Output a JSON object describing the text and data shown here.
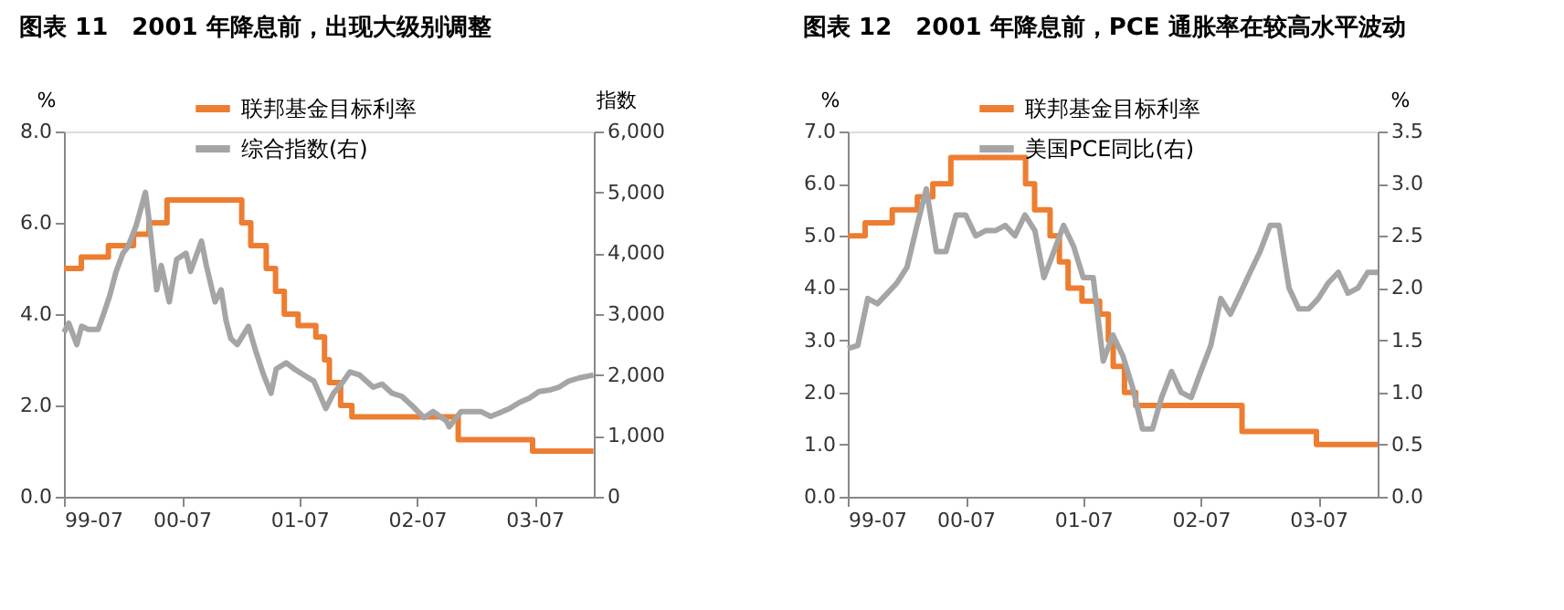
{
  "chart_data": [
    {
      "type": "line",
      "title": "图表 11　2001 年降息前，出现大级别调整",
      "ylabel": "%",
      "y2label": "指数",
      "legend": "top",
      "grid": false,
      "xlim": [
        "1999-07-01",
        "2004-01-01"
      ],
      "xticks": [
        {
          "value": "1999-07",
          "label": "99-07"
        },
        {
          "value": "2000-07",
          "label": "00-07"
        },
        {
          "value": "2001-07",
          "label": "01-07"
        },
        {
          "value": "2002-07",
          "label": "02-07"
        },
        {
          "value": "2003-07",
          "label": "03-07"
        }
      ],
      "ylim": [
        0,
        8
      ],
      "yticks": [
        {
          "value": 0,
          "label": "0.0"
        },
        {
          "value": 2,
          "label": "2.0"
        },
        {
          "value": 4,
          "label": "4.0"
        },
        {
          "value": 6,
          "label": "6.0"
        },
        {
          "value": 8,
          "label": "8.0"
        }
      ],
      "y2lim": [
        0,
        6000
      ],
      "y2ticks": [
        {
          "value": 0,
          "label": "0"
        },
        {
          "value": 1000,
          "label": "1,000"
        },
        {
          "value": 2000,
          "label": "2,000"
        },
        {
          "value": 3000,
          "label": "3,000"
        },
        {
          "value": 4000,
          "label": "4,000"
        },
        {
          "value": 5000,
          "label": "5,000"
        },
        {
          "value": 6000,
          "label": "6,000"
        }
      ],
      "series": [
        {
          "name": "联邦基金目标利率",
          "type": "step",
          "color": "#ed7d31",
          "x": [
            "1999-07-01",
            "1999-08-24",
            "1999-11-16",
            "2000-02-02",
            "2000-03-21",
            "2000-05-16",
            "2001-01-03",
            "2001-01-31",
            "2001-03-20",
            "2001-04-18",
            "2001-05-15",
            "2001-06-27",
            "2001-08-21",
            "2001-09-17",
            "2001-10-02",
            "2001-11-06",
            "2001-12-11",
            "2002-11-06",
            "2003-06-25",
            "2003-12-31"
          ],
          "values": [
            5.0,
            5.25,
            5.5,
            5.75,
            6.0,
            6.5,
            6.0,
            5.5,
            5.0,
            4.5,
            4.0,
            3.75,
            3.5,
            3.0,
            2.5,
            2.0,
            1.75,
            1.25,
            1.0,
            1.0
          ]
        },
        {
          "name": "综合指数(右)",
          "axis": "y2",
          "color": "#a5a5a5",
          "x": [
            "1999-07-01",
            "1999-07-16",
            "1999-08-10",
            "1999-08-25",
            "1999-09-15",
            "1999-10-15",
            "1999-11-01",
            "1999-11-20",
            "1999-12-10",
            "1999-12-31",
            "2000-01-15",
            "2000-02-10",
            "2000-03-10",
            "2000-03-20",
            "2000-04-14",
            "2000-04-28",
            "2000-05-23",
            "2000-06-15",
            "2000-07-14",
            "2000-07-28",
            "2000-08-31",
            "2000-09-15",
            "2000-10-12",
            "2000-10-31",
            "2000-11-15",
            "2000-11-30",
            "2000-12-20",
            "2001-01-24",
            "2001-02-15",
            "2001-03-12",
            "2001-04-04",
            "2001-04-20",
            "2001-05-21",
            "2001-06-15",
            "2001-07-15",
            "2001-08-15",
            "2001-09-21",
            "2001-10-15",
            "2001-11-15",
            "2001-12-05",
            "2002-01-04",
            "2002-02-15",
            "2002-03-15",
            "2002-04-15",
            "2002-05-15",
            "2002-06-15",
            "2002-07-23",
            "2002-08-20",
            "2002-09-30",
            "2002-10-09",
            "2002-11-15",
            "2002-12-15",
            "2003-01-15",
            "2003-02-15",
            "2003-03-15",
            "2003-04-15",
            "2003-05-15",
            "2003-06-15",
            "2003-07-15",
            "2003-08-15",
            "2003-09-15",
            "2003-10-15",
            "2003-11-15",
            "2003-12-31"
          ],
          "values": [
            2700,
            2850,
            2500,
            2800,
            2750,
            2750,
            3000,
            3300,
            3700,
            4000,
            4100,
            4450,
            5000,
            4600,
            3400,
            3800,
            3200,
            3900,
            4000,
            3700,
            4200,
            3800,
            3200,
            3400,
            2900,
            2600,
            2500,
            2800,
            2400,
            2000,
            1700,
            2100,
            2200,
            2100,
            2000,
            1900,
            1450,
            1700,
            1900,
            2050,
            2000,
            1800,
            1850,
            1700,
            1650,
            1500,
            1300,
            1400,
            1250,
            1150,
            1400,
            1400,
            1400,
            1320,
            1380,
            1450,
            1550,
            1620,
            1730,
            1750,
            1800,
            1900,
            1950,
            2000
          ]
        }
      ]
    },
    {
      "type": "line",
      "title": "图表 12　2001 年降息前，PCE 通胀率在较高水平波动",
      "ylabel": "%",
      "y2label": "%",
      "legend": "top",
      "grid": false,
      "xlim": [
        "1999-07-01",
        "2004-01-01"
      ],
      "xticks": [
        {
          "value": "1999-07",
          "label": "99-07"
        },
        {
          "value": "2000-07",
          "label": "00-07"
        },
        {
          "value": "2001-07",
          "label": "01-07"
        },
        {
          "value": "2002-07",
          "label": "02-07"
        },
        {
          "value": "2003-07",
          "label": "03-07"
        }
      ],
      "ylim": [
        0,
        7
      ],
      "yticks": [
        {
          "value": 0,
          "label": "0.0"
        },
        {
          "value": 1,
          "label": "1.0"
        },
        {
          "value": 2,
          "label": "2.0"
        },
        {
          "value": 3,
          "label": "3.0"
        },
        {
          "value": 4,
          "label": "4.0"
        },
        {
          "value": 5,
          "label": "5.0"
        },
        {
          "value": 6,
          "label": "6.0"
        },
        {
          "value": 7,
          "label": "7.0"
        }
      ],
      "y2lim": [
        0,
        3.5
      ],
      "y2ticks": [
        {
          "value": 0,
          "label": "0.0"
        },
        {
          "value": 0.5,
          "label": "0.5"
        },
        {
          "value": 1,
          "label": "1.0"
        },
        {
          "value": 1.5,
          "label": "1.5"
        },
        {
          "value": 2,
          "label": "2.0"
        },
        {
          "value": 2.5,
          "label": "2.5"
        },
        {
          "value": 3,
          "label": "3.0"
        },
        {
          "value": 3.5,
          "label": "3.5"
        }
      ],
      "series": [
        {
          "name": "联邦基金目标利率",
          "type": "step",
          "color": "#ed7d31",
          "x": [
            "1999-07-01",
            "1999-08-24",
            "1999-11-16",
            "2000-02-02",
            "2000-03-21",
            "2000-05-16",
            "2001-01-03",
            "2001-01-31",
            "2001-03-20",
            "2001-04-18",
            "2001-05-15",
            "2001-06-27",
            "2001-08-21",
            "2001-09-17",
            "2001-10-02",
            "2001-11-06",
            "2001-12-11",
            "2002-11-06",
            "2003-06-25",
            "2004-01-01"
          ],
          "values": [
            5.0,
            5.25,
            5.5,
            5.75,
            6.0,
            6.5,
            6.0,
            5.5,
            5.0,
            4.5,
            4.0,
            3.75,
            3.5,
            3.0,
            2.5,
            2.0,
            1.75,
            1.25,
            1.0,
            1.0
          ]
        },
        {
          "name": "美国PCE同比(右)",
          "axis": "y2",
          "color": "#a5a5a5",
          "x": [
            "1999-07",
            "1999-08",
            "1999-09",
            "1999-10",
            "1999-11",
            "1999-12",
            "2000-01",
            "2000-02",
            "2000-03",
            "2000-04",
            "2000-05",
            "2000-06",
            "2000-07",
            "2000-08",
            "2000-09",
            "2000-10",
            "2000-11",
            "2000-12",
            "2001-01",
            "2001-02",
            "2001-03",
            "2001-04",
            "2001-05",
            "2001-06",
            "2001-07",
            "2001-08",
            "2001-09",
            "2001-10",
            "2001-11",
            "2001-12",
            "2002-01",
            "2002-02",
            "2002-03",
            "2002-04",
            "2002-05",
            "2002-06",
            "2002-07",
            "2002-08",
            "2002-09",
            "2002-10",
            "2002-11",
            "2002-12",
            "2003-01",
            "2003-02",
            "2003-03",
            "2003-04",
            "2003-05",
            "2003-06",
            "2003-07",
            "2003-08",
            "2003-09",
            "2003-10",
            "2003-11",
            "2003-12",
            "2004-01"
          ],
          "values": [
            1.42,
            1.45,
            1.9,
            1.85,
            1.95,
            2.05,
            2.2,
            2.6,
            2.95,
            2.35,
            2.35,
            2.7,
            2.7,
            2.5,
            2.55,
            2.55,
            2.6,
            2.5,
            2.7,
            2.55,
            2.1,
            2.35,
            2.6,
            2.4,
            2.1,
            2.1,
            1.3,
            1.55,
            1.35,
            1.05,
            0.65,
            0.65,
            0.95,
            1.2,
            1.0,
            0.95,
            1.2,
            1.45,
            1.9,
            1.75,
            1.95,
            2.15,
            2.35,
            2.6,
            2.6,
            2.0,
            1.8,
            1.8,
            1.9,
            2.05,
            2.15,
            1.95,
            2.0,
            2.15,
            2.15
          ]
        }
      ]
    }
  ]
}
